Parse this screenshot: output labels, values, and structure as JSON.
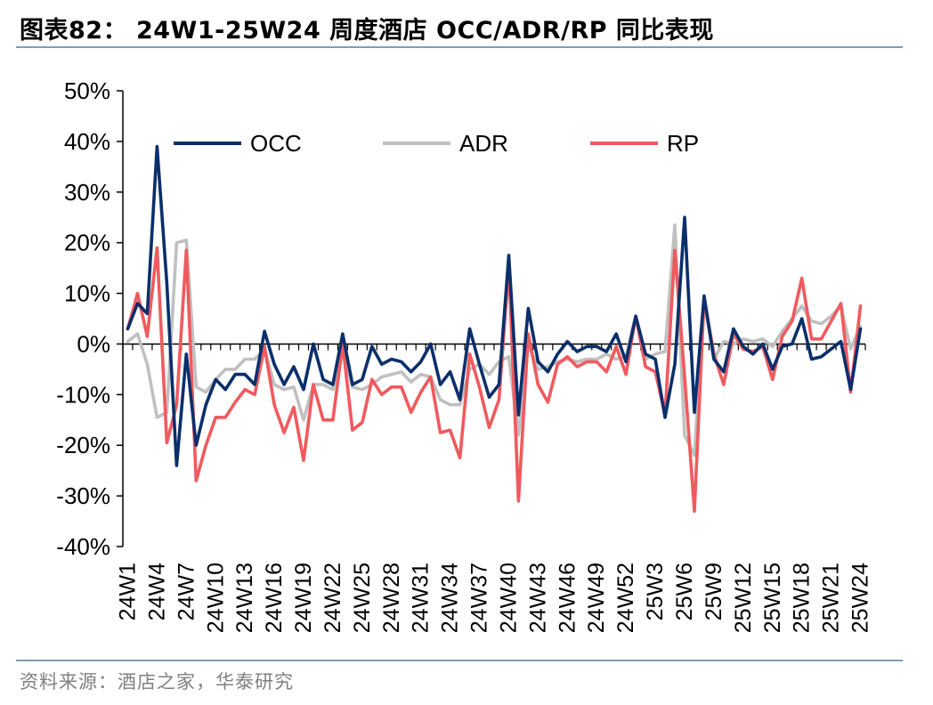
{
  "header": {
    "title": "图表82： 24W1-25W24 周度酒店 OCC/ADR/RP 同比表现"
  },
  "footer": {
    "source": "资料来源：酒店之家，华泰研究"
  },
  "chart_data": {
    "type": "line",
    "title": "图表82： 24W1-25W24 周度酒店 OCC/ADR/RP 同比表现",
    "xlabel": "",
    "ylabel": "",
    "ylim": [
      -40,
      50
    ],
    "yticks": [
      -40,
      -30,
      -20,
      -10,
      0,
      10,
      20,
      30,
      40,
      50
    ],
    "ytick_labels": [
      "-40%",
      "-30%",
      "-20%",
      "-10%",
      "0%",
      "10%",
      "20%",
      "30%",
      "40%",
      "50%"
    ],
    "x": [
      "24W1",
      "24W2",
      "24W3",
      "24W4",
      "24W5",
      "24W6",
      "24W7",
      "24W8",
      "24W9",
      "24W10",
      "24W11",
      "24W12",
      "24W13",
      "24W14",
      "24W15",
      "24W16",
      "24W17",
      "24W18",
      "24W19",
      "24W20",
      "24W21",
      "24W22",
      "24W23",
      "24W24",
      "24W25",
      "24W26",
      "24W27",
      "24W28",
      "24W29",
      "24W30",
      "24W31",
      "24W32",
      "24W33",
      "24W34",
      "24W35",
      "24W36",
      "24W37",
      "24W38",
      "24W39",
      "24W40",
      "24W41",
      "24W42",
      "24W43",
      "24W44",
      "24W45",
      "24W46",
      "24W47",
      "24W48",
      "24W49",
      "24W50",
      "24W51",
      "24W52",
      "25W1",
      "25W2",
      "25W3",
      "25W4",
      "25W5",
      "25W6",
      "25W7",
      "25W8",
      "25W9",
      "25W10",
      "25W11",
      "25W12",
      "25W13",
      "25W14",
      "25W15",
      "25W16",
      "25W17",
      "25W18",
      "25W19",
      "25W20",
      "25W21",
      "25W22",
      "25W23",
      "25W24"
    ],
    "xtick_labels": [
      "24W1",
      "24W4",
      "24W7",
      "24W10",
      "24W13",
      "24W16",
      "24W19",
      "24W22",
      "24W25",
      "24W28",
      "24W31",
      "24W34",
      "24W37",
      "24W40",
      "24W43",
      "24W46",
      "24W49",
      "24W52",
      "25W3",
      "25W6",
      "25W9",
      "25W12",
      "25W15",
      "25W18",
      "25W21",
      "25W24"
    ],
    "legend_position": "top",
    "series": [
      {
        "name": "OCC",
        "color": "#0b2f6b",
        "values": [
          3,
          8,
          6,
          39,
          12,
          -24,
          -2,
          -20,
          -12,
          -7,
          -9,
          -6,
          -6,
          -8,
          2.5,
          -4,
          -8,
          -4.5,
          -9,
          0,
          -7,
          -8,
          2,
          -8,
          -7,
          -0.5,
          -4,
          -3,
          -3.5,
          -5.5,
          -3.5,
          0,
          -8,
          -5.5,
          -11,
          3,
          -4,
          -10.5,
          -8,
          17.5,
          -14,
          7,
          -3.5,
          -5.5,
          -2,
          0.5,
          -1.5,
          -0.5,
          -0.5,
          -1.5,
          2,
          -3.5,
          5.5,
          -2,
          -3,
          -14.5,
          -4,
          25,
          -13.5,
          9.5,
          -3,
          -5.5,
          3,
          -0.5,
          -2,
          0,
          -5,
          -0.5,
          0,
          5,
          -3,
          -2.5,
          -1,
          0.5,
          -9,
          3
        ]
      },
      {
        "name": "ADR",
        "color": "#c0c0c0",
        "values": [
          0.5,
          2,
          -4,
          -14.5,
          -13.5,
          20,
          20.5,
          -8.5,
          -9.5,
          -7,
          -5,
          -5,
          -3,
          -3,
          -1,
          -8,
          -9,
          -8.5,
          -15,
          -8,
          -8,
          -9,
          -1,
          -8.5,
          -9,
          -8,
          -6.5,
          -6,
          -5.5,
          -7.5,
          -6,
          -6.5,
          -11,
          -12,
          -12,
          -5,
          -4,
          -6,
          -3.5,
          -2.5,
          -18,
          0,
          -5,
          -4.5,
          -3.5,
          -3,
          -3.5,
          -3,
          -3,
          -2,
          -3,
          -2.5,
          5.5,
          -3,
          -2,
          -1.5,
          23.5,
          -18,
          -22,
          8.5,
          -3,
          0.5,
          0,
          1,
          0.5,
          1,
          -0.5,
          2.5,
          5,
          7.5,
          4.5,
          4,
          5.5,
          7.5,
          -1,
          3.5
        ]
      },
      {
        "name": "RP",
        "color": "#f05a5e",
        "values": [
          3,
          10,
          1.5,
          19,
          -19.5,
          -12,
          18.5,
          -27,
          -20,
          -14.5,
          -14.5,
          -11.5,
          -9,
          -10,
          -0.5,
          -12,
          -17.5,
          -12.5,
          -23,
          -8,
          -15,
          -15,
          0,
          -17,
          -15.5,
          -7,
          -10,
          -8.5,
          -8.5,
          -13.5,
          -9.5,
          -6.5,
          -17.5,
          -17,
          -22.5,
          -2,
          -8.5,
          -16.5,
          -11,
          15.5,
          -31,
          2,
          -8,
          -11.5,
          -4,
          -2.5,
          -4.5,
          -3.5,
          -3.5,
          -5.5,
          -0.5,
          -6,
          5.5,
          -4.5,
          -5.5,
          -14,
          18.5,
          -6.5,
          -33,
          9,
          -2,
          -8,
          2,
          -1,
          -1.5,
          -0.5,
          -7,
          1.5,
          4.5,
          13,
          1,
          1,
          4.5,
          8,
          -9.5,
          7.5
        ]
      }
    ]
  }
}
